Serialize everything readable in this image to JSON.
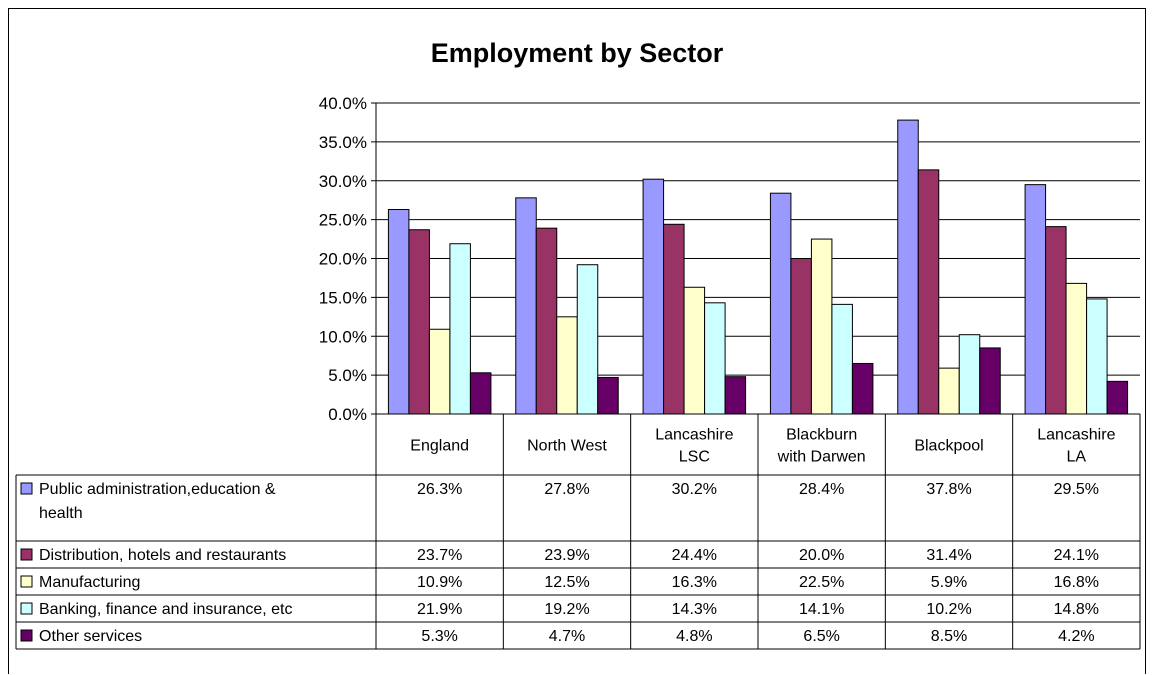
{
  "chart_data": {
    "type": "bar",
    "title": "Employment by Sector",
    "categories": [
      [
        "England"
      ],
      [
        "North West"
      ],
      [
        "Lancashire",
        "LSC"
      ],
      [
        "Blackburn",
        "with Darwen"
      ],
      [
        "Blackpool"
      ],
      [
        "Lancashire",
        "LA"
      ]
    ],
    "ylim": [
      0,
      40
    ],
    "yticks": [
      "0.0%",
      "5.0%",
      "10.0%",
      "15.0%",
      "20.0%",
      "25.0%",
      "30.0%",
      "35.0%",
      "40.0%"
    ],
    "grid": true,
    "legend": "data-table",
    "series": [
      {
        "name": [
          "Public administration,education &",
          "health"
        ],
        "color": "#9999FF",
        "values": [
          26.3,
          27.8,
          30.2,
          28.4,
          37.8,
          29.5
        ],
        "labels": [
          "26.3%",
          "27.8%",
          "30.2%",
          "28.4%",
          "37.8%",
          "29.5%"
        ]
      },
      {
        "name": [
          "Distribution, hotels and restaurants"
        ],
        "color": "#993366",
        "values": [
          23.7,
          23.9,
          24.4,
          20.0,
          31.4,
          24.1
        ],
        "labels": [
          "23.7%",
          "23.9%",
          "24.4%",
          "20.0%",
          "31.4%",
          "24.1%"
        ]
      },
      {
        "name": [
          "Manufacturing"
        ],
        "color": "#FFFFCC",
        "values": [
          10.9,
          12.5,
          16.3,
          22.5,
          5.9,
          16.8
        ],
        "labels": [
          "10.9%",
          "12.5%",
          "16.3%",
          "22.5%",
          "5.9%",
          "16.8%"
        ]
      },
      {
        "name": [
          "Banking, finance and insurance, etc"
        ],
        "color": "#CCFFFF",
        "values": [
          21.9,
          19.2,
          14.3,
          14.1,
          10.2,
          14.8
        ],
        "labels": [
          "21.9%",
          "19.2%",
          "14.3%",
          "14.1%",
          "10.2%",
          "14.8%"
        ]
      },
      {
        "name": [
          "Other services"
        ],
        "color": "#660066",
        "values": [
          5.3,
          4.7,
          4.8,
          6.5,
          8.5,
          4.2
        ],
        "labels": [
          "5.3%",
          "4.7%",
          "4.8%",
          "6.5%",
          "8.5%",
          "4.2%"
        ]
      }
    ]
  }
}
